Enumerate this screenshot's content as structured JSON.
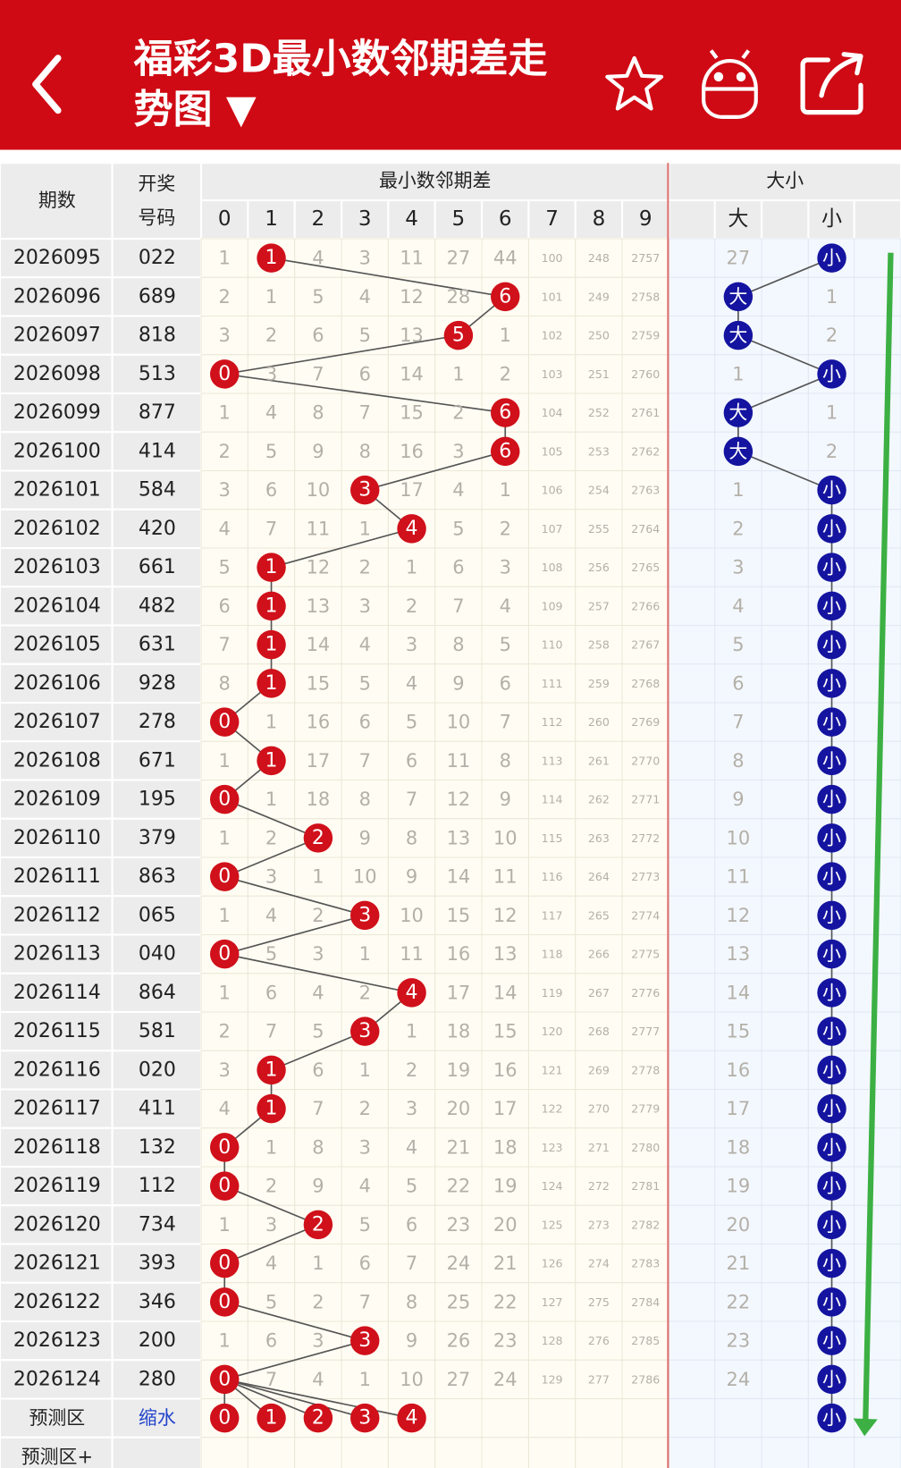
{
  "header": {
    "title": "福彩3D最小数邻期差走势图 ▼"
  },
  "table": {
    "columns": {
      "period": "期数",
      "number": "开奖号码",
      "group_diff": "最小数邻期差",
      "group_size": "大小",
      "digits": [
        "0",
        "1",
        "2",
        "3",
        "4",
        "5",
        "6",
        "7",
        "8",
        "9"
      ],
      "big": "大",
      "small": "小"
    },
    "rows": [
      {
        "period": "2026095",
        "number": "022",
        "cells": [
          1,
          1,
          4,
          3,
          11,
          27,
          44,
          100,
          248,
          2757
        ],
        "hit": 1,
        "big": 27,
        "small": "小"
      },
      {
        "period": "2026096",
        "number": "689",
        "cells": [
          2,
          1,
          5,
          4,
          12,
          28,
          6,
          101,
          249,
          2758
        ],
        "hit": 6,
        "big": "大",
        "small": 1
      },
      {
        "period": "2026097",
        "number": "818",
        "cells": [
          3,
          2,
          6,
          5,
          13,
          5,
          1,
          102,
          250,
          2759
        ],
        "hit": 5,
        "big": "大",
        "small": 2
      },
      {
        "period": "2026098",
        "number": "513",
        "cells": [
          0,
          3,
          7,
          6,
          14,
          1,
          2,
          103,
          251,
          2760
        ],
        "hit": 0,
        "big": 1,
        "small": "小"
      },
      {
        "period": "2026099",
        "number": "877",
        "cells": [
          1,
          4,
          8,
          7,
          15,
          2,
          6,
          104,
          252,
          2761
        ],
        "hit": 6,
        "big": "大",
        "small": 1
      },
      {
        "period": "2026100",
        "number": "414",
        "cells": [
          2,
          5,
          9,
          8,
          16,
          3,
          6,
          105,
          253,
          2762
        ],
        "hit": 6,
        "big": "大",
        "small": 2
      },
      {
        "period": "2026101",
        "number": "584",
        "cells": [
          3,
          6,
          10,
          3,
          17,
          4,
          1,
          106,
          254,
          2763
        ],
        "hit": 3,
        "big": 1,
        "small": "小"
      },
      {
        "period": "2026102",
        "number": "420",
        "cells": [
          4,
          7,
          11,
          1,
          4,
          5,
          2,
          107,
          255,
          2764
        ],
        "hit": 4,
        "big": 2,
        "small": "小"
      },
      {
        "period": "2026103",
        "number": "661",
        "cells": [
          5,
          1,
          12,
          2,
          1,
          6,
          3,
          108,
          256,
          2765
        ],
        "hit": 1,
        "big": 3,
        "small": "小"
      },
      {
        "period": "2026104",
        "number": "482",
        "cells": [
          6,
          1,
          13,
          3,
          2,
          7,
          4,
          109,
          257,
          2766
        ],
        "hit": 1,
        "big": 4,
        "small": "小"
      },
      {
        "period": "2026105",
        "number": "631",
        "cells": [
          7,
          1,
          14,
          4,
          3,
          8,
          5,
          110,
          258,
          2767
        ],
        "hit": 1,
        "big": 5,
        "small": "小"
      },
      {
        "period": "2026106",
        "number": "928",
        "cells": [
          8,
          1,
          15,
          5,
          4,
          9,
          6,
          111,
          259,
          2768
        ],
        "hit": 1,
        "big": 6,
        "small": "小"
      },
      {
        "period": "2026107",
        "number": "278",
        "cells": [
          0,
          1,
          16,
          6,
          5,
          10,
          7,
          112,
          260,
          2769
        ],
        "hit": 0,
        "big": 7,
        "small": "小"
      },
      {
        "period": "2026108",
        "number": "671",
        "cells": [
          1,
          1,
          17,
          7,
          6,
          11,
          8,
          113,
          261,
          2770
        ],
        "hit": 1,
        "big": 8,
        "small": "小"
      },
      {
        "period": "2026109",
        "number": "195",
        "cells": [
          0,
          1,
          18,
          8,
          7,
          12,
          9,
          114,
          262,
          2771
        ],
        "hit": 0,
        "big": 9,
        "small": "小"
      },
      {
        "period": "2026110",
        "number": "379",
        "cells": [
          1,
          2,
          2,
          9,
          8,
          13,
          10,
          115,
          263,
          2772
        ],
        "hit": 2,
        "big": 10,
        "small": "小"
      },
      {
        "period": "2026111",
        "number": "863",
        "cells": [
          0,
          3,
          1,
          10,
          9,
          14,
          11,
          116,
          264,
          2773
        ],
        "hit": 0,
        "big": 11,
        "small": "小"
      },
      {
        "period": "2026112",
        "number": "065",
        "cells": [
          1,
          4,
          2,
          3,
          10,
          15,
          12,
          117,
          265,
          2774
        ],
        "hit": 3,
        "big": 12,
        "small": "小"
      },
      {
        "period": "2026113",
        "number": "040",
        "cells": [
          0,
          5,
          3,
          1,
          11,
          16,
          13,
          118,
          266,
          2775
        ],
        "hit": 0,
        "big": 13,
        "small": "小"
      },
      {
        "period": "2026114",
        "number": "864",
        "cells": [
          1,
          6,
          4,
          2,
          4,
          17,
          14,
          119,
          267,
          2776
        ],
        "hit": 4,
        "big": 14,
        "small": "小"
      },
      {
        "period": "2026115",
        "number": "581",
        "cells": [
          2,
          7,
          5,
          3,
          1,
          18,
          15,
          120,
          268,
          2777
        ],
        "hit": 3,
        "big": 15,
        "small": "小"
      },
      {
        "period": "2026116",
        "number": "020",
        "cells": [
          3,
          1,
          6,
          1,
          2,
          19,
          16,
          121,
          269,
          2778
        ],
        "hit": 1,
        "big": 16,
        "small": "小"
      },
      {
        "period": "2026117",
        "number": "411",
        "cells": [
          4,
          1,
          7,
          2,
          3,
          20,
          17,
          122,
          270,
          2779
        ],
        "hit": 1,
        "big": 17,
        "small": "小"
      },
      {
        "period": "2026118",
        "number": "132",
        "cells": [
          0,
          1,
          8,
          3,
          4,
          21,
          18,
          123,
          271,
          2780
        ],
        "hit": 0,
        "big": 18,
        "small": "小"
      },
      {
        "period": "2026119",
        "number": "112",
        "cells": [
          0,
          2,
          9,
          4,
          5,
          22,
          19,
          124,
          272,
          2781
        ],
        "hit": 0,
        "big": 19,
        "small": "小"
      },
      {
        "period": "2026120",
        "number": "734",
        "cells": [
          1,
          3,
          2,
          5,
          6,
          23,
          20,
          125,
          273,
          2782
        ],
        "hit": 2,
        "big": 20,
        "small": "小"
      },
      {
        "period": "2026121",
        "number": "393",
        "cells": [
          0,
          4,
          1,
          6,
          7,
          24,
          21,
          126,
          274,
          2783
        ],
        "hit": 0,
        "big": 21,
        "small": "小"
      },
      {
        "period": "2026122",
        "number": "346",
        "cells": [
          0,
          5,
          2,
          7,
          8,
          25,
          22,
          127,
          275,
          2784
        ],
        "hit": 0,
        "big": 22,
        "small": "小"
      },
      {
        "period": "2026123",
        "number": "200",
        "cells": [
          1,
          6,
          3,
          3,
          9,
          26,
          23,
          128,
          276,
          2785
        ],
        "hit": 3,
        "big": 23,
        "small": "小"
      },
      {
        "period": "2026124",
        "number": "280",
        "cells": [
          0,
          7,
          4,
          1,
          10,
          27,
          24,
          129,
          277,
          2786
        ],
        "hit": 0,
        "big": 24,
        "small": "小"
      }
    ],
    "prediction": {
      "label": "预测区",
      "number": "缩水",
      "picks": [
        0,
        1,
        2,
        3,
        4
      ],
      "small": "小"
    },
    "prediction_plus": {
      "label": "预测区+"
    }
  }
}
